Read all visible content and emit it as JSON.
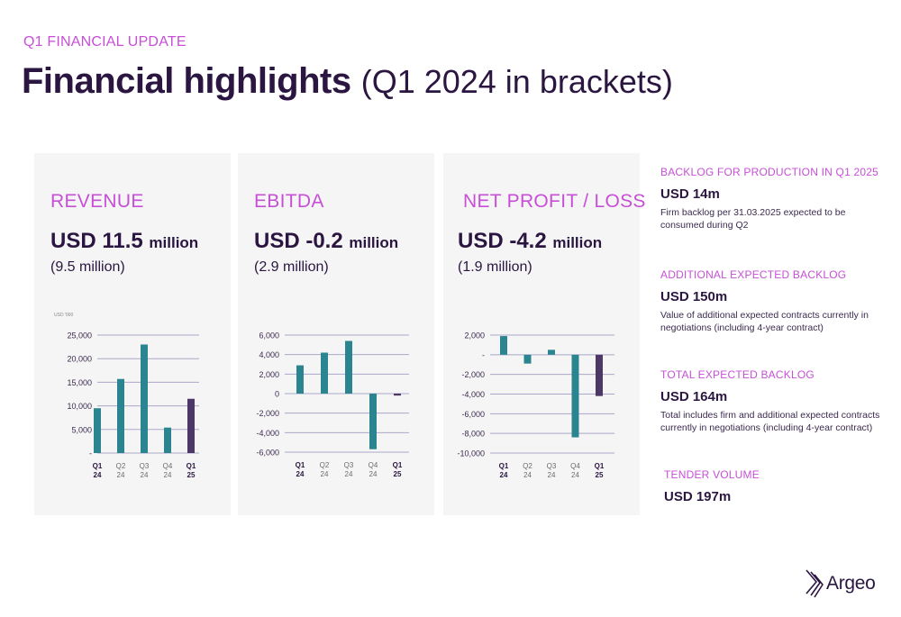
{
  "header": {
    "eyebrow": "Q1 FINANCIAL UPDATE",
    "title_strong": "Financial highlights",
    "title_light": "(Q1 2024 in brackets)"
  },
  "panels": [
    {
      "title": "REVENUE",
      "value": "USD 11.5",
      "unit": "million",
      "prev": "(9.5 million)",
      "axis_unit": "USD '000"
    },
    {
      "title": "EBITDA",
      "value": "USD -0.2",
      "unit": "million",
      "prev": "(2.9 million)"
    },
    {
      "title": "NET PROFIT / LOSS",
      "value": "USD -4.2",
      "unit": "million",
      "prev": "(1.9 million)"
    }
  ],
  "side": [
    {
      "label": "BACKLOG FOR PRODUCTION IN Q1 2025",
      "value": "USD 14m",
      "desc": "Firm backlog per 31.03.2025 expected to be consumed during Q2"
    },
    {
      "label": "ADDITIONAL EXPECTED BACKLOG",
      "value": "USD 150m",
      "desc": "Value of additional expected contracts currently in negotiations (including 4-year contract)"
    },
    {
      "label": "TOTAL EXPECTED BACKLOG",
      "value": "USD 164m",
      "desc": "Total includes firm and additional expected contracts currently in negotiations (including 4-year contract)"
    },
    {
      "label": "TENDER VOLUME",
      "value": "USD 197m"
    }
  ],
  "logo": {
    "text": "Argeo",
    "icon": "argeo-chevron-icon"
  },
  "colors": {
    "accent": "#c64fd6",
    "navy": "#2a1640",
    "teal": "#2b8590",
    "purple": "#4d3766",
    "panel": "#f5f5f5",
    "grid": "#a9a9c9"
  },
  "chart_data": [
    {
      "type": "bar",
      "categories": [
        [
          "Q1",
          "24"
        ],
        [
          "Q2",
          "24"
        ],
        [
          "Q3",
          "24"
        ],
        [
          "Q4",
          "24"
        ],
        [
          "Q1",
          "25"
        ]
      ],
      "values": [
        9500,
        15700,
        23000,
        5400,
        11500
      ],
      "highlight_index": 4,
      "ylim": [
        0,
        25000
      ],
      "yticks": [
        0,
        5000,
        10000,
        15000,
        20000,
        25000
      ],
      "ytick_labels": [
        "-",
        "5,000",
        "10,000",
        "15,000",
        "20,000",
        "25,000"
      ],
      "ylabel": "USD '000",
      "grid": true
    },
    {
      "type": "bar",
      "categories": [
        [
          "Q1",
          "24"
        ],
        [
          "Q2",
          "24"
        ],
        [
          "Q3",
          "24"
        ],
        [
          "Q4",
          "24"
        ],
        [
          "Q1",
          "25"
        ]
      ],
      "values": [
        2900,
        4200,
        5400,
        -5700,
        -200
      ],
      "highlight_index": 4,
      "ylim": [
        -6000,
        6000
      ],
      "yticks": [
        -6000,
        -4000,
        -2000,
        0,
        2000,
        4000,
        6000
      ],
      "ytick_labels": [
        "-6,000",
        "-4,000",
        "-2,000",
        "0",
        "2,000",
        "4,000",
        "6,000"
      ],
      "grid": true
    },
    {
      "type": "bar",
      "categories": [
        [
          "Q1",
          "24"
        ],
        [
          "Q2",
          "24"
        ],
        [
          "Q3",
          "24"
        ],
        [
          "Q4",
          "24"
        ],
        [
          "Q1",
          "25"
        ]
      ],
      "values": [
        1900,
        -900,
        500,
        -8400,
        -4200
      ],
      "highlight_index": 4,
      "ylim": [
        -10000,
        2000
      ],
      "yticks": [
        -10000,
        -8000,
        -6000,
        -4000,
        -2000,
        0,
        2000
      ],
      "ytick_labels": [
        "-10,000",
        "-8,000",
        "-6,000",
        "-4,000",
        "-2,000",
        "-",
        "2,000"
      ],
      "grid": true
    }
  ]
}
